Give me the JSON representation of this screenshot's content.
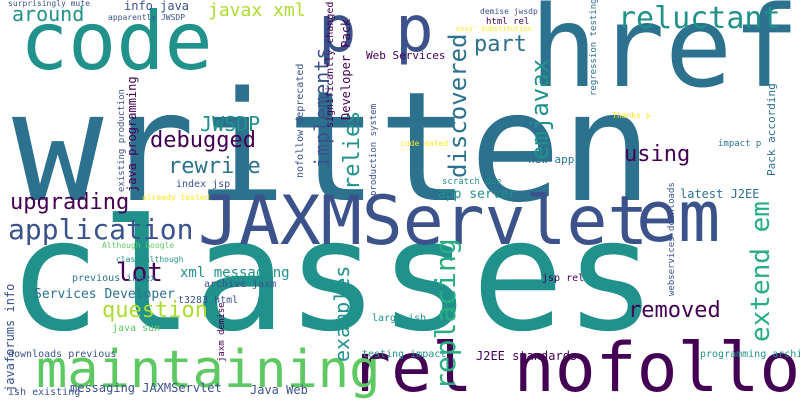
{
  "palette": {
    "background": "#ffffff",
    "dark_purple": "#440154",
    "indigo": "#3b528b",
    "steel_blue": "#2c728e",
    "teal": "#21918c",
    "green": "#28ae80",
    "lime": "#5ec962",
    "yellow_green": "#addc30",
    "yellow": "#fde725"
  },
  "words": [
    {
      "text": "written",
      "color": "steel_blue"
    },
    {
      "text": "classes",
      "color": "teal"
    },
    {
      "text": "code",
      "color": "teal"
    },
    {
      "text": "href",
      "color": "steel_blue"
    },
    {
      "text": "rel nofollow",
      "color": "dark_purple"
    },
    {
      "text": "JAXMServlet",
      "color": "indigo"
    },
    {
      "text": "em",
      "color": "indigo"
    },
    {
      "text": "p p",
      "color": "indigo"
    },
    {
      "text": "maintaining",
      "color": "lime"
    },
    {
      "text": "reluctant",
      "color": "teal"
    },
    {
      "text": "application",
      "color": "indigo"
    },
    {
      "text": "upgrading",
      "color": "dark_purple"
    },
    {
      "text": "question",
      "color": "yellow_green"
    },
    {
      "text": "removed",
      "color": "dark_purple"
    },
    {
      "text": "rewrite",
      "color": "steel_blue"
    },
    {
      "text": "debugged",
      "color": "dark_purple"
    },
    {
      "text": "JWSDP",
      "color": "teal"
    },
    {
      "text": "lot",
      "color": "dark_purple"
    },
    {
      "text": "around",
      "color": "teal"
    },
    {
      "text": "part",
      "color": "steel_blue"
    },
    {
      "text": "using",
      "color": "dark_purple"
    },
    {
      "text": "javax xml",
      "color": "yellow_green"
    },
    {
      "text": "info java",
      "color": "indigo"
    },
    {
      "text": "xml messaging",
      "color": "teal"
    },
    {
      "text": "Services Developer",
      "color": "steel_blue"
    },
    {
      "text": "new app",
      "color": "steel_blue"
    },
    {
      "text": "latest J2EE",
      "color": "steel_blue"
    },
    {
      "text": "app server",
      "color": "teal"
    },
    {
      "text": "J2EE standards",
      "color": "dark_purple"
    },
    {
      "text": "messaging JAXMServlet",
      "color": "indigo"
    },
    {
      "text": "Java Web",
      "color": "indigo"
    },
    {
      "text": "previous index",
      "color": "steel_blue"
    },
    {
      "text": "archive jaxm",
      "color": "indigo"
    },
    {
      "text": "t3283 html",
      "color": "indigo"
    },
    {
      "text": "index jsp",
      "color": "indigo"
    },
    {
      "text": "java sun",
      "color": "lime"
    },
    {
      "text": "large ish",
      "color": "teal"
    },
    {
      "text": "jsp rel",
      "color": "dark_purple"
    },
    {
      "text": "testing impact",
      "color": "teal"
    },
    {
      "text": "downloads previous",
      "color": "indigo"
    },
    {
      "text": "ish existing",
      "color": "indigo"
    },
    {
      "text": "programming archive",
      "color": "teal"
    },
    {
      "text": "Web Services",
      "color": "dark_purple"
    },
    {
      "text": "scratch due",
      "color": "teal"
    },
    {
      "text": "code dated",
      "color": "yellow"
    },
    {
      "text": "Thanks p",
      "color": "yellow"
    },
    {
      "text": "impact p",
      "color": "steel_blue"
    },
    {
      "text": "already tested",
      "color": "yellow"
    },
    {
      "text": "Although Google",
      "color": "lime"
    },
    {
      "text": "class Although",
      "color": "teal"
    },
    {
      "text": "html rel",
      "color": "dark_purple"
    },
    {
      "text": "demise jwsdp",
      "color": "indigo"
    },
    {
      "text": "essy' substitution",
      "color": "yellow"
    },
    {
      "text": "surprisingly mute",
      "color": "indigo"
    },
    {
      "text": "apparently JWSDP",
      "color": "indigo"
    },
    {
      "text": "implements",
      "color": "indigo"
    },
    {
      "text": "discovered",
      "color": "steel_blue"
    },
    {
      "text": "relies",
      "color": "teal"
    },
    {
      "text": "emjavax",
      "color": "teal"
    },
    {
      "text": "examples",
      "color": "teal"
    },
    {
      "text": "replacing",
      "color": "green"
    },
    {
      "text": "extend em",
      "color": "green"
    },
    {
      "text": "javaforums info",
      "color": "indigo"
    },
    {
      "text": "java programming",
      "color": "dark_purple"
    },
    {
      "text": "existing production",
      "color": "indigo"
    },
    {
      "text": "significantly changed",
      "color": "dark_purple"
    },
    {
      "text": "nofollow deprecated",
      "color": "indigo"
    },
    {
      "text": "Developer Pack",
      "color": "dark_purple"
    },
    {
      "text": "production system",
      "color": "indigo"
    },
    {
      "text": "regression testing",
      "color": "steel_blue"
    },
    {
      "text": "Pack according",
      "color": "steel_blue"
    },
    {
      "text": "webservices downloads",
      "color": "indigo"
    },
    {
      "text": "jaxm demise",
      "color": "dark_purple"
    }
  ]
}
